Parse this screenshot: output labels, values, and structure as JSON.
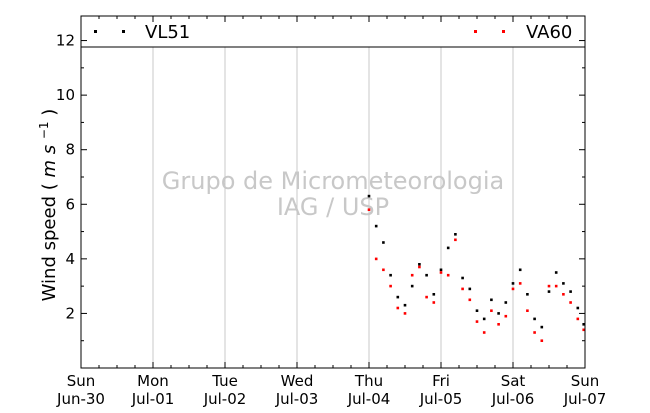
{
  "chart_data": {
    "type": "scatter",
    "ylabel": "Wind speed (m s⁻¹)",
    "ylabel_text": "Wind speed",
    "ylabel_unit": "m s",
    "ylabel_exp": "−1",
    "ylim": [
      0,
      12.9
    ],
    "yticks": [
      2,
      4,
      6,
      8,
      10,
      12
    ],
    "xlim": [
      "2013-06-30",
      "2013-07-07"
    ],
    "xticks": [
      {
        "day": "Sun",
        "date": "Jun-30"
      },
      {
        "day": "Mon",
        "date": "Jul-01"
      },
      {
        "day": "Tue",
        "date": "Jul-02"
      },
      {
        "day": "Wed",
        "date": "Jul-03"
      },
      {
        "day": "Thu",
        "date": "Jul-04"
      },
      {
        "day": "Fri",
        "date": "Jul-05"
      },
      {
        "day": "Sat",
        "date": "Jul-06"
      },
      {
        "day": "Sun",
        "date": "Jul-07"
      }
    ],
    "grid": "vertical",
    "legend_placement": "top",
    "watermark": [
      "Grupo de Micrometeorologia",
      "IAG / USP"
    ],
    "series": [
      {
        "name": "VL51",
        "color": "#000000",
        "x_days": [
          4.0,
          4.1,
          4.2,
          4.3,
          4.4,
          4.5,
          4.6,
          4.7,
          4.8,
          4.9,
          5.0,
          5.1,
          5.2,
          5.3,
          5.4,
          5.5,
          5.6,
          5.7,
          5.8,
          5.9,
          6.0,
          6.1,
          6.2,
          6.3,
          6.4,
          6.5,
          6.6,
          6.7,
          6.8,
          6.9,
          7.0
        ],
        "values": [
          6.3,
          5.2,
          4.6,
          3.4,
          2.6,
          2.3,
          3.0,
          3.8,
          3.4,
          2.7,
          3.6,
          4.4,
          4.9,
          3.3,
          2.9,
          2.1,
          1.8,
          2.5,
          2.0,
          2.4,
          3.1,
          3.6,
          2.7,
          1.8,
          1.5,
          2.8,
          3.5,
          3.1,
          2.8,
          2.2,
          1.6
        ]
      },
      {
        "name": "VA60",
        "color": "#ff0000",
        "x_days": [
          4.0,
          4.1,
          4.2,
          4.3,
          4.4,
          4.5,
          4.6,
          4.7,
          4.8,
          4.9,
          5.0,
          5.1,
          5.2,
          5.3,
          5.4,
          5.5,
          5.6,
          5.7,
          5.8,
          5.9,
          6.0,
          6.1,
          6.2,
          6.3,
          6.4,
          6.5,
          6.6,
          6.7,
          6.8,
          6.9,
          7.0
        ],
        "values": [
          5.8,
          4.0,
          3.6,
          3.0,
          2.2,
          2.0,
          3.4,
          3.7,
          2.6,
          2.4,
          3.5,
          3.4,
          4.7,
          2.9,
          2.5,
          1.7,
          1.3,
          2.1,
          1.6,
          1.9,
          2.9,
          3.1,
          2.1,
          1.3,
          1.0,
          3.0,
          3.0,
          2.7,
          2.4,
          1.8,
          1.4
        ]
      }
    ]
  }
}
